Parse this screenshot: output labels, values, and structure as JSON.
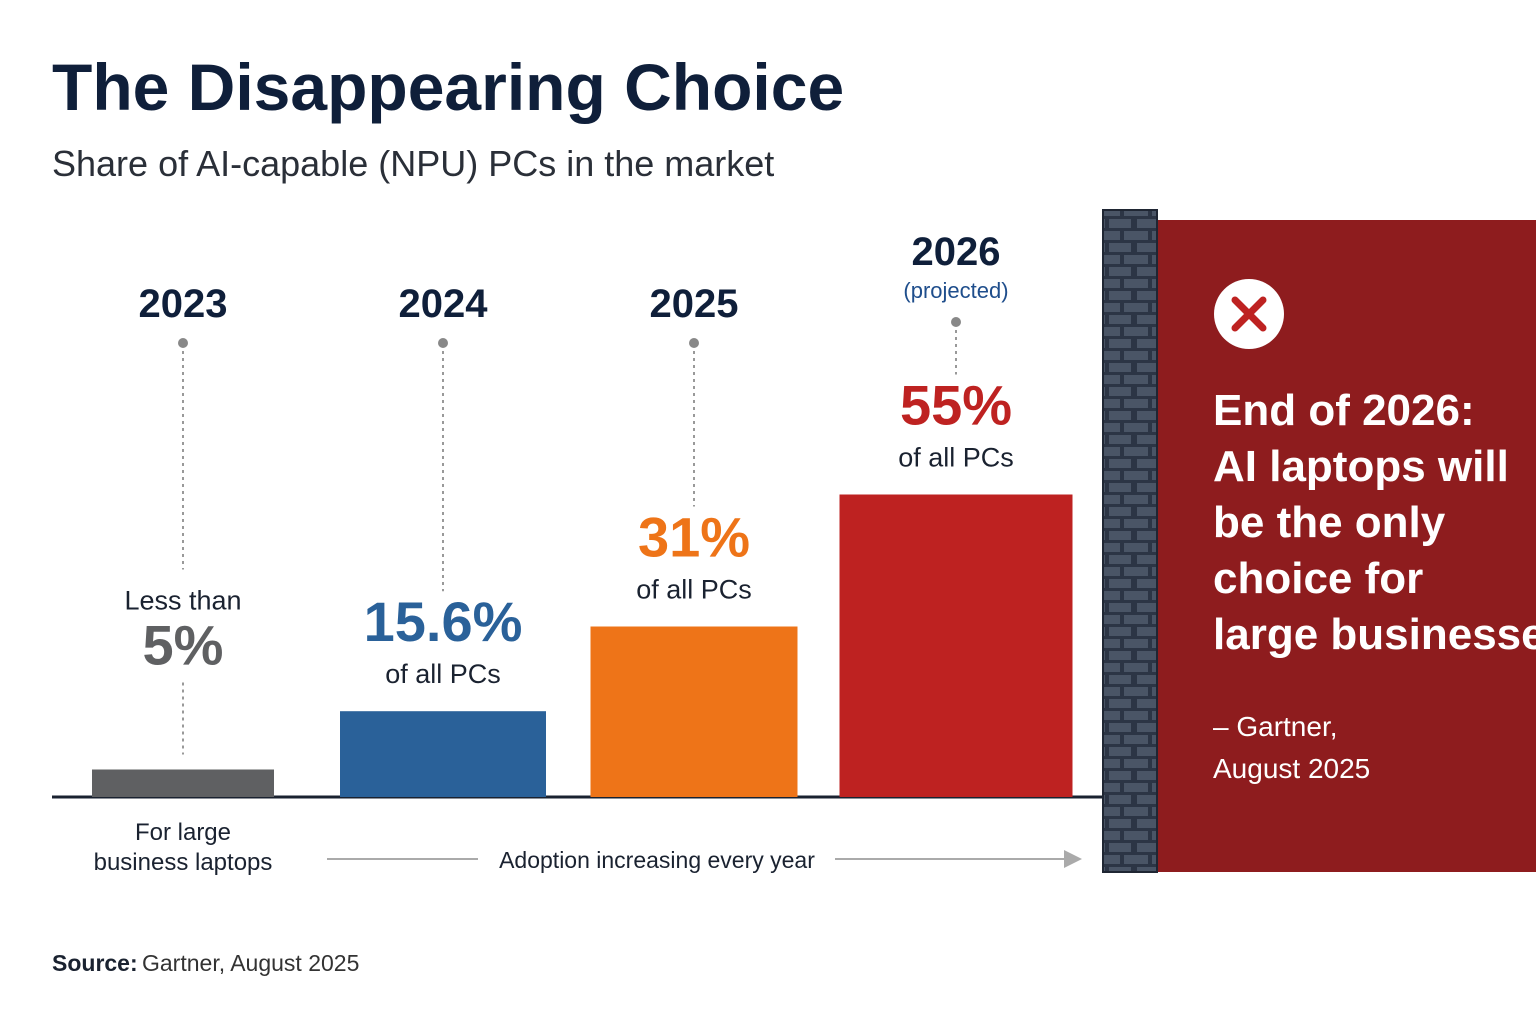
{
  "chart_data": {
    "type": "bar",
    "title": "The Disappearing Choice",
    "subtitle": "Share of AI-capable (NPU) PCs in the market",
    "categories": [
      "2023",
      "2024",
      "2025",
      "2026"
    ],
    "category_notes": [
      null,
      null,
      null,
      "(projected)"
    ],
    "values": [
      5,
      15.6,
      31,
      55
    ],
    "value_labels": [
      "5%",
      "15.6%",
      "31%",
      "55%"
    ],
    "value_label_prefix": [
      "Less than",
      null,
      null,
      null
    ],
    "value_label_suffix": [
      null,
      "of all PCs",
      "of all PCs",
      "of all PCs"
    ],
    "colors": [
      "#5f6062",
      "#2a6199",
      "#ee7418",
      "#be2221"
    ],
    "first_bar_note": [
      "For large",
      "business laptops"
    ],
    "arrow_label": "Adoption increasing every year",
    "callout": {
      "lines": [
        "End of 2026:",
        "AI laptops will",
        "be the only",
        "choice for",
        "large businesses"
      ],
      "attribution": [
        "– Gartner,",
        "August 2025"
      ]
    },
    "source": {
      "label": "Source:",
      "text": "Gartner, August 2025"
    }
  }
}
